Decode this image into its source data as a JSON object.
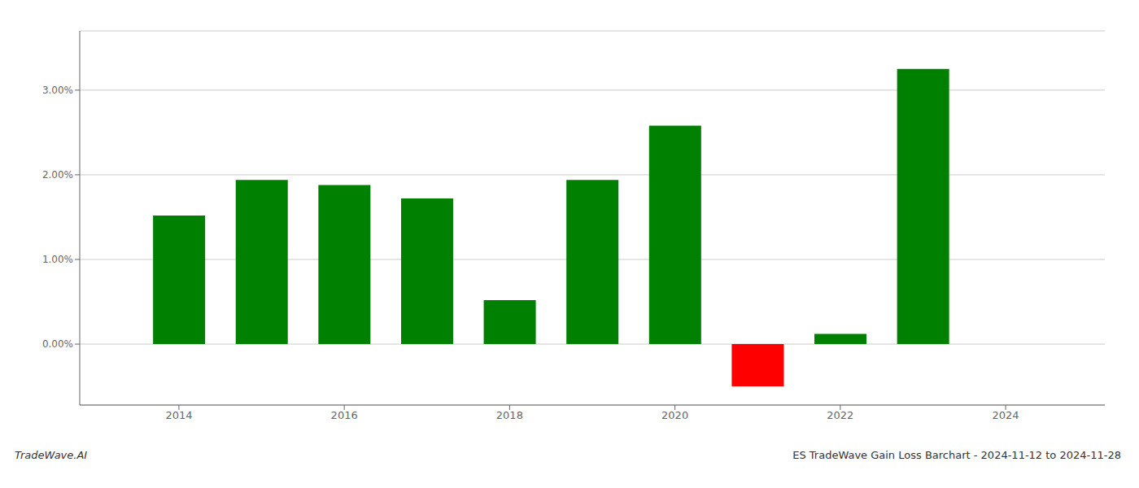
{
  "chart_data": {
    "type": "bar",
    "title": "ES TradeWave Gain Loss Barchart - 2024-11-12 to 2024-11-28",
    "annotations": [
      "TradeWave.AI"
    ],
    "x": [
      2014,
      2015,
      2016,
      2017,
      2018,
      2019,
      2020,
      2021,
      2022,
      2023
    ],
    "values": [
      1.52,
      1.94,
      1.88,
      1.72,
      0.52,
      1.94,
      2.58,
      -0.5,
      0.12,
      3.25
    ],
    "colors": [
      "#008000",
      "#008000",
      "#008000",
      "#008000",
      "#008000",
      "#008000",
      "#008000",
      "#ff0000",
      "#008000",
      "#008000"
    ],
    "xlim": [
      2012.8,
      2025.2
    ],
    "xticks": [
      2014,
      2016,
      2018,
      2020,
      2022,
      2024
    ],
    "ylim": [
      -0.72,
      3.7
    ],
    "yticks": [
      {
        "value": 0.0,
        "label": "0.00%"
      },
      {
        "value": 1.0,
        "label": "1.00%"
      },
      {
        "value": 2.0,
        "label": "2.00%"
      },
      {
        "value": 3.0,
        "label": "3.00%"
      }
    ],
    "grid": true
  }
}
